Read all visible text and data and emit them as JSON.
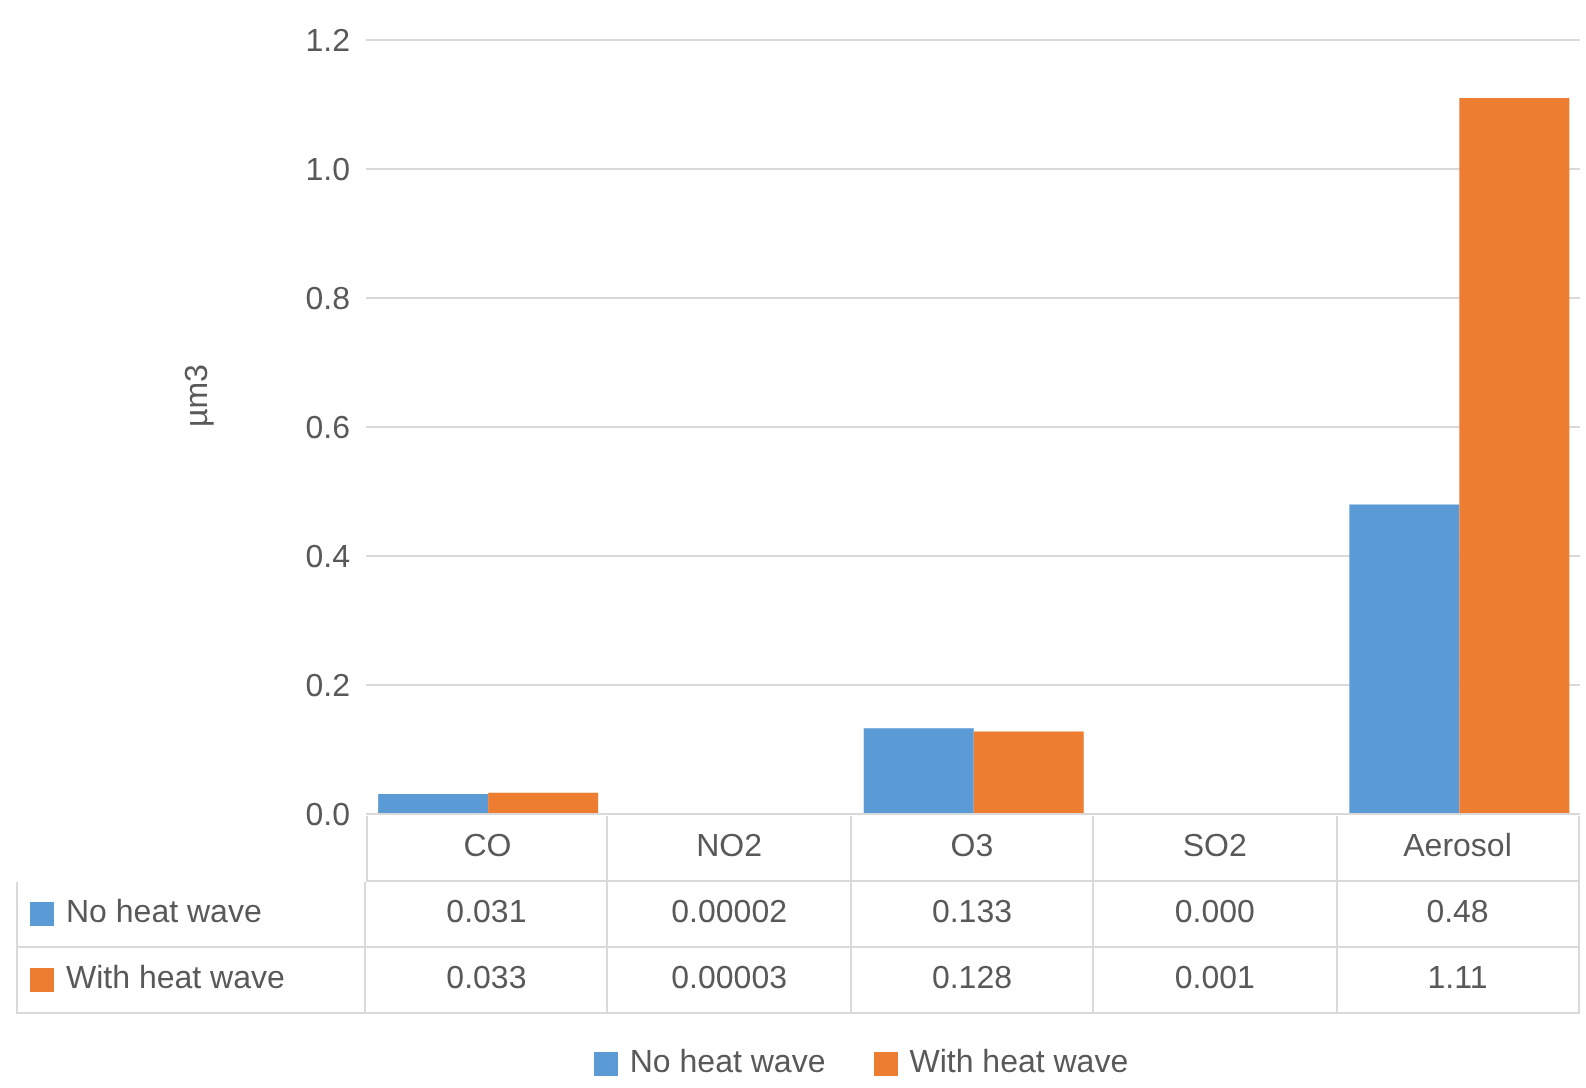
{
  "chart_data": {
    "type": "bar",
    "ylabel": "µm3",
    "categories": [
      "CO",
      "NO2",
      "O3",
      "SO2",
      "Aerosol"
    ],
    "series": [
      {
        "name": "No heat wave",
        "color": "#5b9bd5",
        "values": [
          0.031,
          2e-05,
          0.133,
          0,
          0.48
        ],
        "value_labels": [
          "0.031",
          "0.00002",
          "0.133",
          "0.000",
          "0.48"
        ]
      },
      {
        "name": "With heat wave",
        "color": "#ed7d31",
        "values": [
          0.033,
          3e-05,
          0.128,
          0.001,
          1.11
        ],
        "value_labels": [
          "0.033",
          "0.00003",
          "0.128",
          "0.001",
          "1.11"
        ]
      }
    ],
    "ylim": [
      0,
      1.2
    ],
    "yticks": [
      {
        "value": 0,
        "label": "0.0"
      },
      0.2,
      0.4,
      0.6,
      0.8,
      {
        "value": 1,
        "label": "1.0"
      },
      1.2
    ],
    "grid": "y",
    "legend": "bottom"
  }
}
